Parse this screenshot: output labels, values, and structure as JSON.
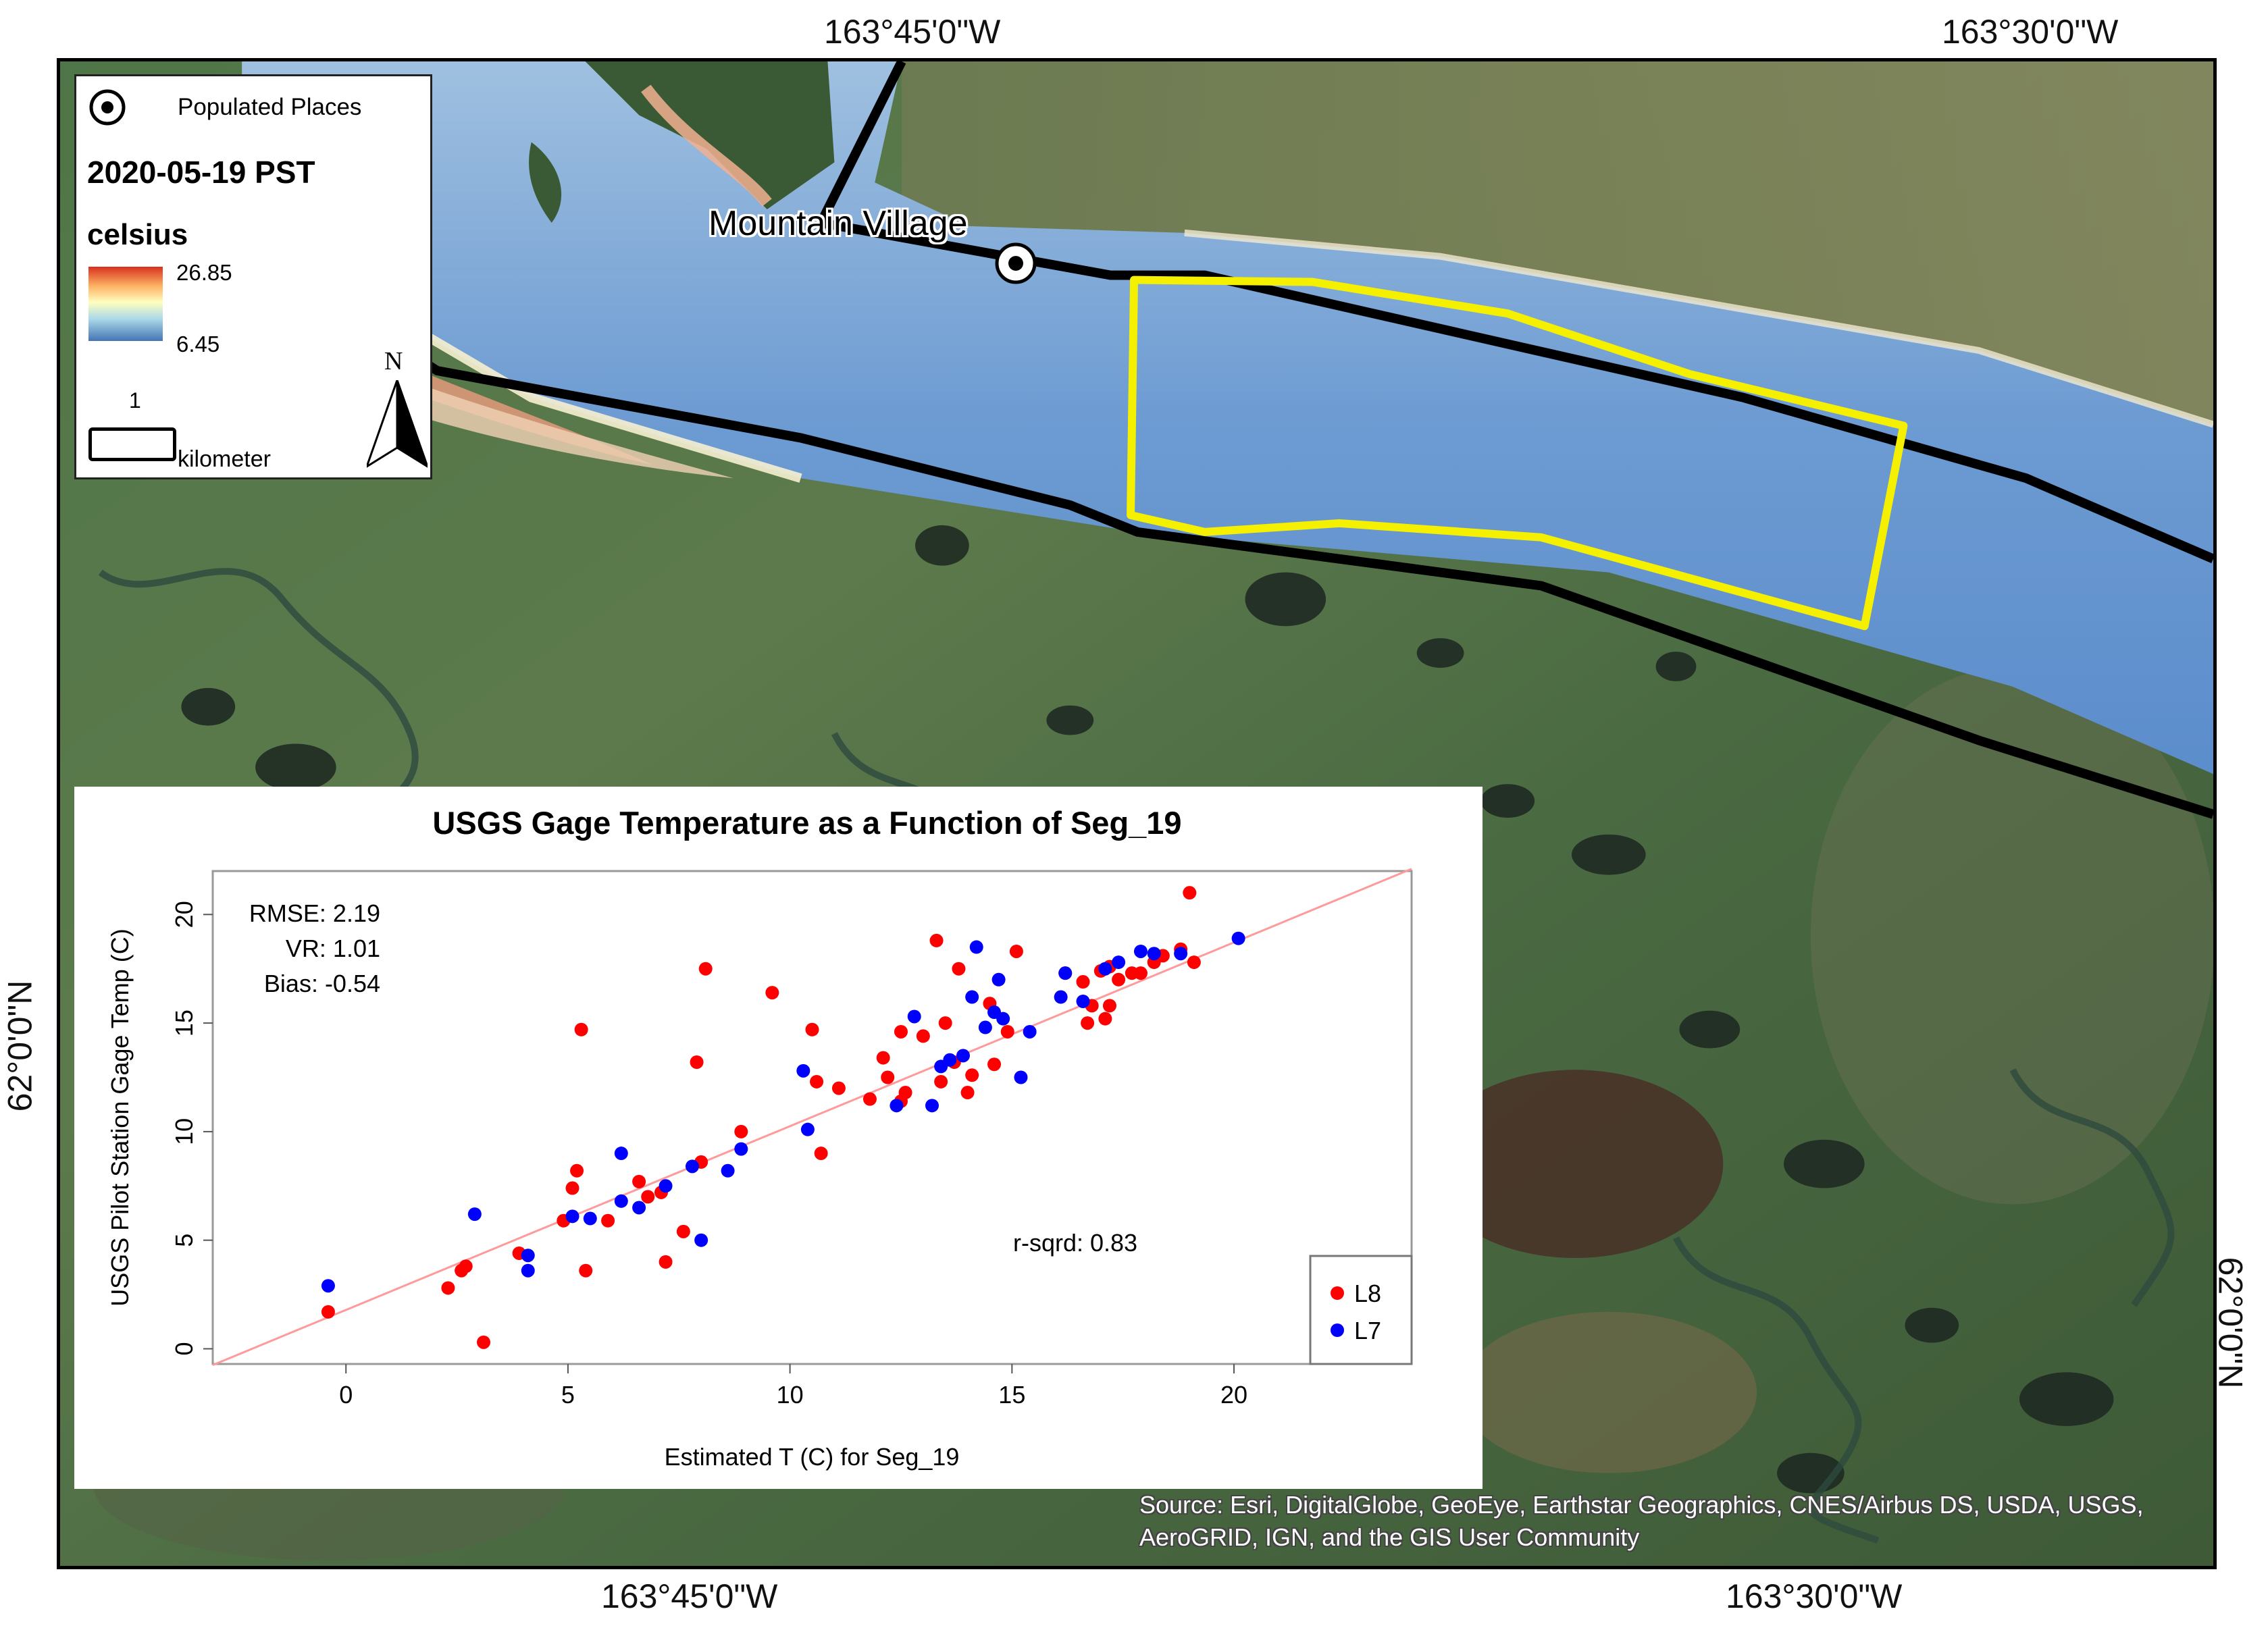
{
  "coordinates": {
    "top_left": "163°45'0\"W",
    "top_right": "163°30'0\"W",
    "bottom_left": "163°45'0\"W",
    "bottom_right": "163°30'0\"W",
    "left": "62°0'0\"N",
    "right": "62°0'0\"N"
  },
  "place": {
    "name": "Mountain Village",
    "icon": "populated-place-icon"
  },
  "legend": {
    "populated_places": "Populated Places",
    "date": "2020-05-19 PST",
    "unit": "celsius",
    "max": "26.85",
    "min": "6.45",
    "scale_value": "1",
    "scale_unit": "kilometer",
    "north": "N",
    "ramp_colors": [
      "#d7301f",
      "#fdae61",
      "#ffffbf",
      "#abd9e9",
      "#4575b4"
    ]
  },
  "attribution": "Source: Esri, DigitalGlobe, GeoEye, Earthstar Geographics, CNES/Airbus DS, USDA, USGS, AeroGRID, IGN, and the GIS User Community",
  "colors": {
    "aoi_outline": "#f5f000",
    "l8": "#ff0000",
    "l7": "#0000ff",
    "fit_line": "#ff9a9a"
  },
  "chart_data": {
    "type": "scatter",
    "title": "USGS Gage Temperature as a Function of Seg_19",
    "xlabel": "Estimated T (C) for Seg_19",
    "ylabel": "USGS Pilot Station Gage Temp (C)",
    "xlim": [
      -3,
      24
    ],
    "ylim": [
      -0.7,
      22
    ],
    "xticks": [
      0,
      5,
      10,
      15,
      20
    ],
    "yticks": [
      0,
      5,
      10,
      15,
      20
    ],
    "stats": [
      "RMSE: 2.19",
      "VR: 1.01",
      "Bias: -0.54"
    ],
    "rsq": "r-sqrd: 0.83",
    "fit_line": {
      "x": [
        -3,
        24
      ],
      "y": [
        -0.75,
        22.1
      ]
    },
    "legend_position": "bottom-right",
    "series": [
      {
        "name": "L8",
        "color": "#ff0000",
        "points": [
          [
            -0.4,
            1.7
          ],
          [
            2.3,
            2.8
          ],
          [
            2.6,
            3.6
          ],
          [
            2.7,
            3.8
          ],
          [
            3.1,
            0.3
          ],
          [
            3.9,
            4.4
          ],
          [
            4.9,
            5.9
          ],
          [
            5.1,
            7.4
          ],
          [
            5.2,
            8.2
          ],
          [
            5.3,
            14.7
          ],
          [
            5.4,
            3.6
          ],
          [
            5.9,
            5.9
          ],
          [
            6.6,
            7.7
          ],
          [
            6.8,
            7.0
          ],
          [
            7.1,
            7.2
          ],
          [
            7.2,
            4.0
          ],
          [
            7.6,
            5.4
          ],
          [
            7.9,
            13.2
          ],
          [
            8.1,
            17.5
          ],
          [
            8.0,
            8.6
          ],
          [
            8.9,
            10.0
          ],
          [
            9.6,
            16.4
          ],
          [
            10.5,
            14.7
          ],
          [
            10.6,
            12.3
          ],
          [
            10.7,
            9.0
          ],
          [
            11.1,
            12.0
          ],
          [
            11.8,
            11.5
          ],
          [
            12.1,
            13.4
          ],
          [
            12.2,
            12.5
          ],
          [
            12.5,
            14.6
          ],
          [
            12.5,
            11.4
          ],
          [
            12.6,
            11.8
          ],
          [
            13.0,
            14.4
          ],
          [
            13.3,
            18.8
          ],
          [
            13.4,
            12.3
          ],
          [
            13.5,
            15.0
          ],
          [
            13.7,
            13.2
          ],
          [
            13.8,
            17.5
          ],
          [
            14.0,
            11.8
          ],
          [
            14.1,
            12.6
          ],
          [
            14.5,
            15.9
          ],
          [
            14.6,
            13.1
          ],
          [
            14.9,
            14.6
          ],
          [
            15.1,
            18.3
          ],
          [
            16.2,
            17.3
          ],
          [
            16.6,
            16.9
          ],
          [
            16.7,
            15.0
          ],
          [
            16.8,
            15.8
          ],
          [
            17.0,
            17.4
          ],
          [
            17.1,
            15.2
          ],
          [
            17.2,
            15.8
          ],
          [
            17.2,
            17.6
          ],
          [
            17.4,
            17.0
          ],
          [
            17.7,
            17.3
          ],
          [
            17.9,
            17.3
          ],
          [
            18.2,
            17.8
          ],
          [
            18.4,
            18.1
          ],
          [
            18.8,
            18.4
          ],
          [
            19.0,
            21.0
          ],
          [
            19.1,
            17.8
          ]
        ]
      },
      {
        "name": "L7",
        "color": "#0000ff",
        "points": [
          [
            -0.4,
            2.9
          ],
          [
            2.9,
            6.2
          ],
          [
            4.1,
            4.3
          ],
          [
            4.1,
            3.6
          ],
          [
            5.1,
            6.1
          ],
          [
            5.5,
            6.0
          ],
          [
            6.2,
            9.0
          ],
          [
            6.2,
            6.8
          ],
          [
            6.6,
            6.5
          ],
          [
            7.2,
            7.5
          ],
          [
            7.8,
            8.4
          ],
          [
            8.0,
            5.0
          ],
          [
            8.6,
            8.2
          ],
          [
            8.9,
            9.2
          ],
          [
            10.3,
            12.8
          ],
          [
            10.4,
            10.1
          ],
          [
            12.4,
            11.2
          ],
          [
            12.8,
            15.3
          ],
          [
            13.2,
            11.2
          ],
          [
            13.4,
            13.0
          ],
          [
            13.6,
            13.3
          ],
          [
            13.9,
            13.5
          ],
          [
            14.1,
            16.2
          ],
          [
            14.2,
            18.5
          ],
          [
            14.4,
            14.8
          ],
          [
            14.6,
            15.5
          ],
          [
            14.7,
            17.0
          ],
          [
            14.8,
            15.2
          ],
          [
            15.2,
            12.5
          ],
          [
            15.4,
            14.6
          ],
          [
            16.1,
            16.2
          ],
          [
            16.2,
            17.3
          ],
          [
            16.6,
            16.0
          ],
          [
            17.1,
            17.5
          ],
          [
            17.4,
            17.8
          ],
          [
            17.9,
            18.3
          ],
          [
            18.2,
            18.2
          ],
          [
            18.8,
            18.2
          ],
          [
            20.1,
            18.9
          ]
        ]
      }
    ]
  }
}
